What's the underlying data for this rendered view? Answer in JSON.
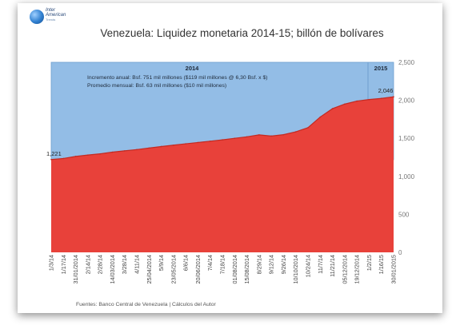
{
  "logo": {
    "line1": "Inter",
    "line2": "American",
    "line3": "Trends"
  },
  "title": "Venezuela: Liquidez monetaria 2014-15; billón de bolívares",
  "source": "Fuentes: Banco Central de Venezuela  |  Cálculos del Autor",
  "annotations": {
    "year_2014": "2014",
    "year_2015": "2015",
    "line1": "Incremento anual:   Bsf. 751 mil millones  ($119 mil millones @ 6,30 Bsf. x $)",
    "line2": "Promedio mensual: Bsf. 63 mil millones ($10 mil millones)"
  },
  "colors": {
    "area": "#e8413a",
    "area_top": "#c32a22",
    "band": "#93bde6",
    "band_edge": "#6f9fcf"
  },
  "chart_data": {
    "type": "area",
    "title": "Venezuela: Liquidez monetaria 2014-15; billón de bolívares",
    "ylim": [
      0,
      2500
    ],
    "yticks": [
      0,
      500,
      1000,
      1500,
      2000,
      2500
    ],
    "x_tick_labels": [
      "1/3/14",
      "1/17/14",
      "31/01/2014",
      "2/14/14",
      "2/28/14",
      "14/03/2014",
      "3/28/14",
      "4/11/14",
      "25/04/2014",
      "5/9/14",
      "23/05/2014",
      "6/6/14",
      "20/06/2014",
      "7/4/14",
      "7/18/14",
      "01/08/2014",
      "15/08/2014",
      "8/29/14",
      "9/12/14",
      "9/26/14",
      "10/10/2014",
      "10/24/14",
      "11/7/14",
      "11/21/14",
      "05/12/2014",
      "19/12/2014",
      "1/2/15",
      "1/16/15",
      "30/01/2015"
    ],
    "values": [
      1221,
      1235,
      1262,
      1280,
      1296,
      1318,
      1335,
      1352,
      1372,
      1392,
      1410,
      1428,
      1445,
      1462,
      1480,
      1500,
      1520,
      1545,
      1530,
      1548,
      1585,
      1640,
      1780,
      1890,
      1950,
      1990,
      2010,
      2025,
      2046
    ],
    "data_labels": [
      {
        "index": 0,
        "text": "1,221"
      },
      {
        "index": 28,
        "text": "2,046"
      }
    ],
    "series": [
      {
        "values": [
          1221,
          1235,
          1262,
          1280,
          1296,
          1318,
          1335,
          1352,
          1372,
          1392,
          1410,
          1428,
          1445,
          1462,
          1480,
          1500,
          1520,
          1545,
          1530,
          1548,
          1585,
          1640,
          1780,
          1890,
          1950,
          1990,
          2010,
          2025,
          2046
        ]
      }
    ],
    "grid": false
  }
}
